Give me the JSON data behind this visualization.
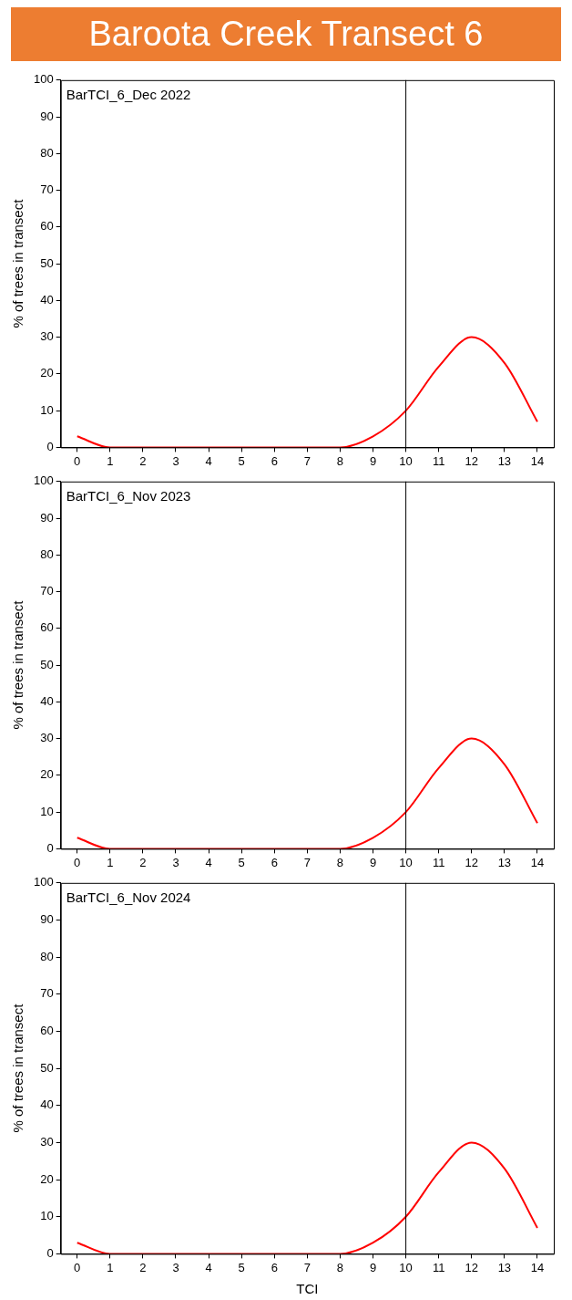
{
  "chart_data": [
    {
      "type": "line",
      "title": "Baroota Creek Transect 6",
      "ylabel": "% of trees in transect",
      "annotations": [
        "BarTCI_6_Dec 2022"
      ],
      "x": [
        0,
        1,
        2,
        3,
        4,
        5,
        6,
        7,
        8,
        9,
        10,
        11,
        12,
        13,
        14
      ],
      "series": [
        {
          "color": "#ff0000",
          "values": [
            3,
            0,
            0,
            0,
            0,
            0,
            0,
            0,
            0,
            3,
            10,
            22,
            30,
            23,
            7
          ]
        }
      ],
      "xlim": [
        -0.5,
        14.5
      ],
      "xticks": [
        0,
        1,
        2,
        3,
        4,
        5,
        6,
        7,
        8,
        9,
        10,
        11,
        12,
        13,
        14
      ],
      "ylim": [
        0,
        100
      ],
      "yticks": [
        0,
        10,
        20,
        30,
        40,
        50,
        60,
        70,
        80,
        90,
        100
      ],
      "ref_lines": [
        {
          "axis": "x",
          "value": 10,
          "color": "#000000"
        }
      ],
      "grid": false,
      "legend": false,
      "marker": "none",
      "line_style": "solid"
    },
    {
      "type": "line",
      "ylabel": "% of trees in transect",
      "annotations": [
        "BarTCI_6_Nov 2023"
      ],
      "x": [
        0,
        1,
        2,
        3,
        4,
        5,
        6,
        7,
        8,
        9,
        10,
        11,
        12,
        13,
        14
      ],
      "series": [
        {
          "color": "#ff0000",
          "values": [
            3,
            0,
            0,
            0,
            0,
            0,
            0,
            0,
            0,
            3,
            10,
            22,
            30,
            23,
            7
          ]
        }
      ],
      "xlim": [
        -0.5,
        14.5
      ],
      "xticks": [
        0,
        1,
        2,
        3,
        4,
        5,
        6,
        7,
        8,
        9,
        10,
        11,
        12,
        13,
        14
      ],
      "ylim": [
        0,
        100
      ],
      "yticks": [
        0,
        10,
        20,
        30,
        40,
        50,
        60,
        70,
        80,
        90,
        100
      ],
      "ref_lines": [
        {
          "axis": "x",
          "value": 10,
          "color": "#000000"
        }
      ],
      "grid": false,
      "legend": false,
      "marker": "none",
      "line_style": "solid"
    },
    {
      "type": "line",
      "xlabel": "TCI",
      "ylabel": "% of trees in transect",
      "annotations": [
        "BarTCI_6_Nov 2024"
      ],
      "x": [
        0,
        1,
        2,
        3,
        4,
        5,
        6,
        7,
        8,
        9,
        10,
        11,
        12,
        13,
        14
      ],
      "series": [
        {
          "color": "#ff0000",
          "values": [
            3,
            0,
            0,
            0,
            0,
            0,
            0,
            0,
            0,
            3,
            10,
            22,
            30,
            23,
            7
          ]
        }
      ],
      "xlim": [
        -0.5,
        14.5
      ],
      "xticks": [
        0,
        1,
        2,
        3,
        4,
        5,
        6,
        7,
        8,
        9,
        10,
        11,
        12,
        13,
        14
      ],
      "ylim": [
        0,
        100
      ],
      "yticks": [
        0,
        10,
        20,
        30,
        40,
        50,
        60,
        70,
        80,
        90,
        100
      ],
      "ref_lines": [
        {
          "axis": "x",
          "value": 10,
          "color": "#000000"
        }
      ],
      "grid": false,
      "legend": false,
      "marker": "none",
      "line_style": "solid"
    }
  ]
}
